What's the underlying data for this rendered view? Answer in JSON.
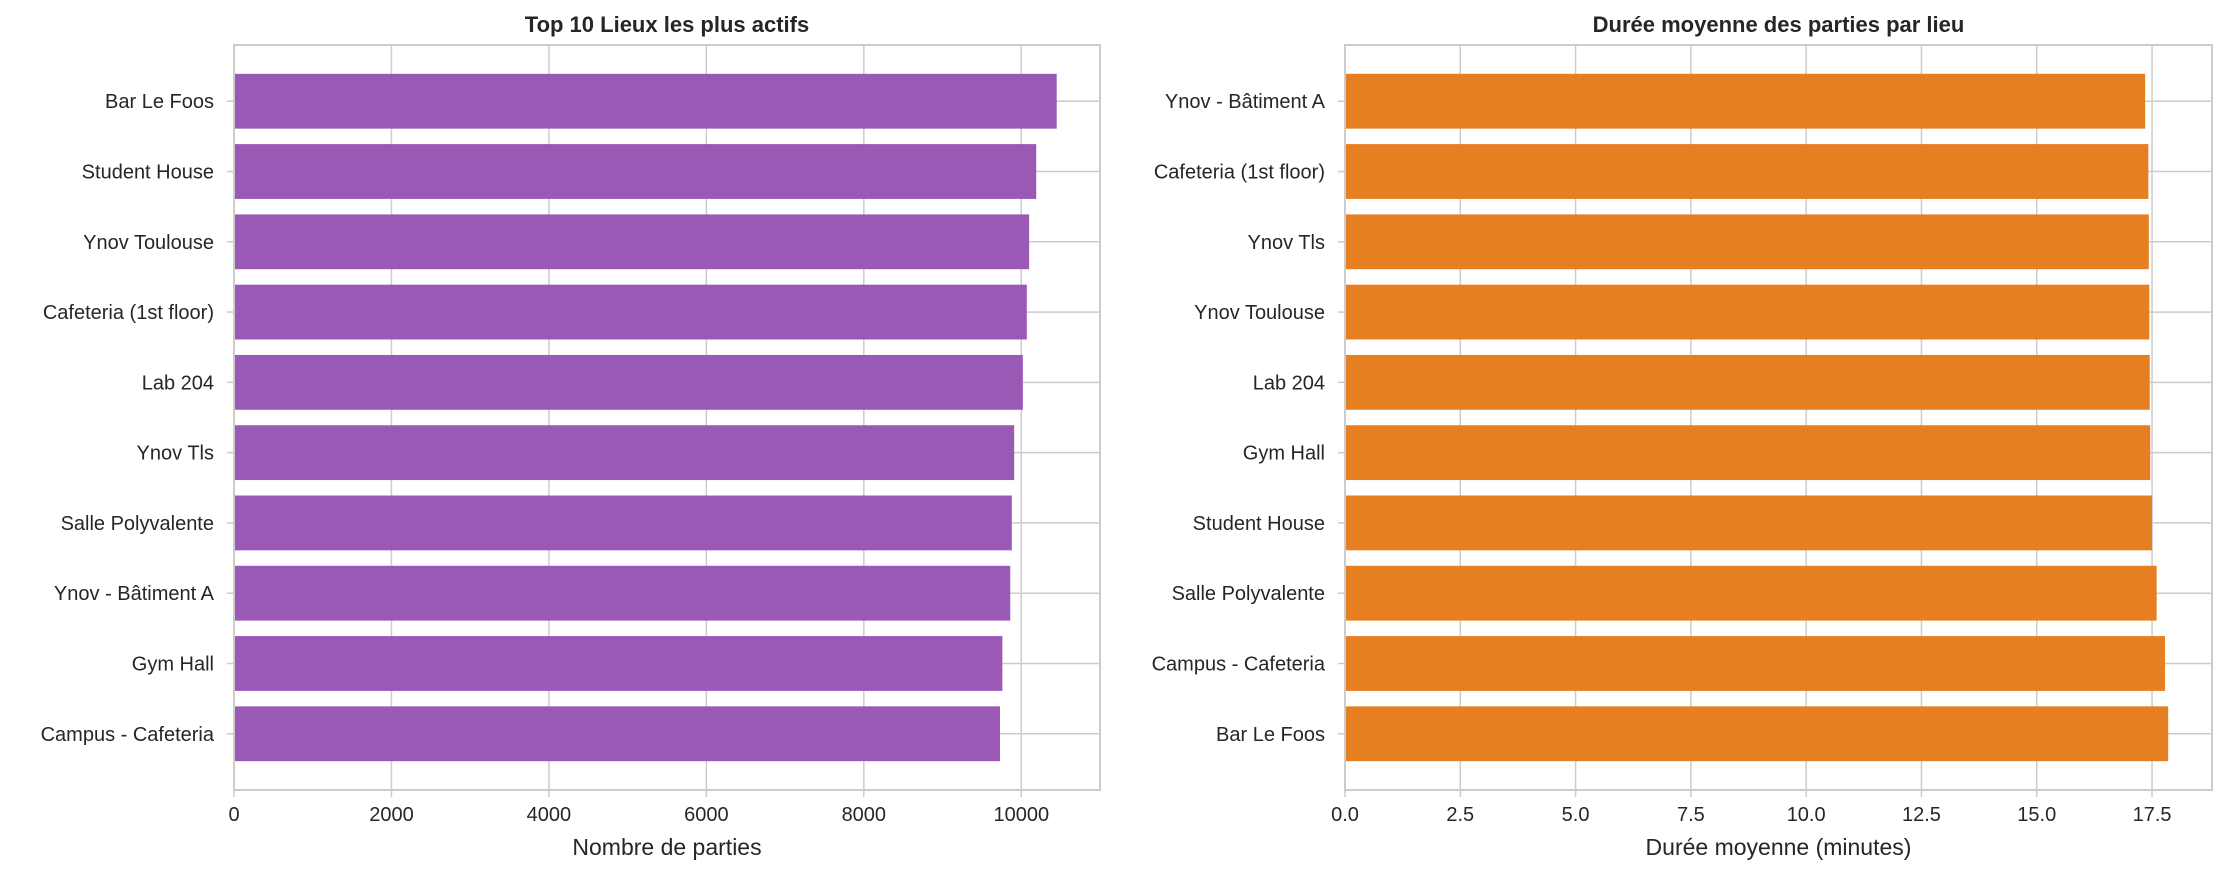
{
  "chart_data": [
    {
      "type": "bar",
      "orientation": "horizontal",
      "title": "Top 10 Lieux les plus actifs",
      "xlabel": "Nombre de parties",
      "ylabel": "",
      "categories": [
        "Bar Le Foos",
        "Student House",
        "Ynov Toulouse",
        "Cafeteria (1st floor)",
        "Lab 204",
        "Ynov Tls",
        "Salle Polyvalente",
        "Ynov - Bâtiment A",
        "Gym Hall",
        "Campus - Cafeteria"
      ],
      "values": [
        10450,
        10190,
        10100,
        10070,
        10020,
        9910,
        9880,
        9860,
        9760,
        9730
      ],
      "xlim": [
        0,
        11000
      ],
      "xticks": [
        "0",
        "2000",
        "4000",
        "6000",
        "8000",
        "10000"
      ],
      "grid": true,
      "color": "#9b59b6"
    },
    {
      "type": "bar",
      "orientation": "horizontal",
      "title": "Durée moyenne des parties par lieu",
      "xlabel": "Durée moyenne (minutes)",
      "ylabel": "",
      "categories": [
        "Ynov - Bâtiment A",
        "Cafeteria (1st floor)",
        "Ynov Tls",
        "Ynov Toulouse",
        "Lab 204",
        "Gym Hall",
        "Student House",
        "Salle Polyvalente",
        "Campus - Cafeteria",
        "Bar Le Foos"
      ],
      "values": [
        17.35,
        17.42,
        17.43,
        17.44,
        17.45,
        17.46,
        17.5,
        17.6,
        17.78,
        17.85
      ],
      "xlim": [
        0,
        18.8
      ],
      "xticks": [
        "0.0",
        "2.5",
        "5.0",
        "7.5",
        "10.0",
        "12.5",
        "15.0",
        "17.5"
      ],
      "grid": true,
      "color": "#e67e22"
    }
  ]
}
